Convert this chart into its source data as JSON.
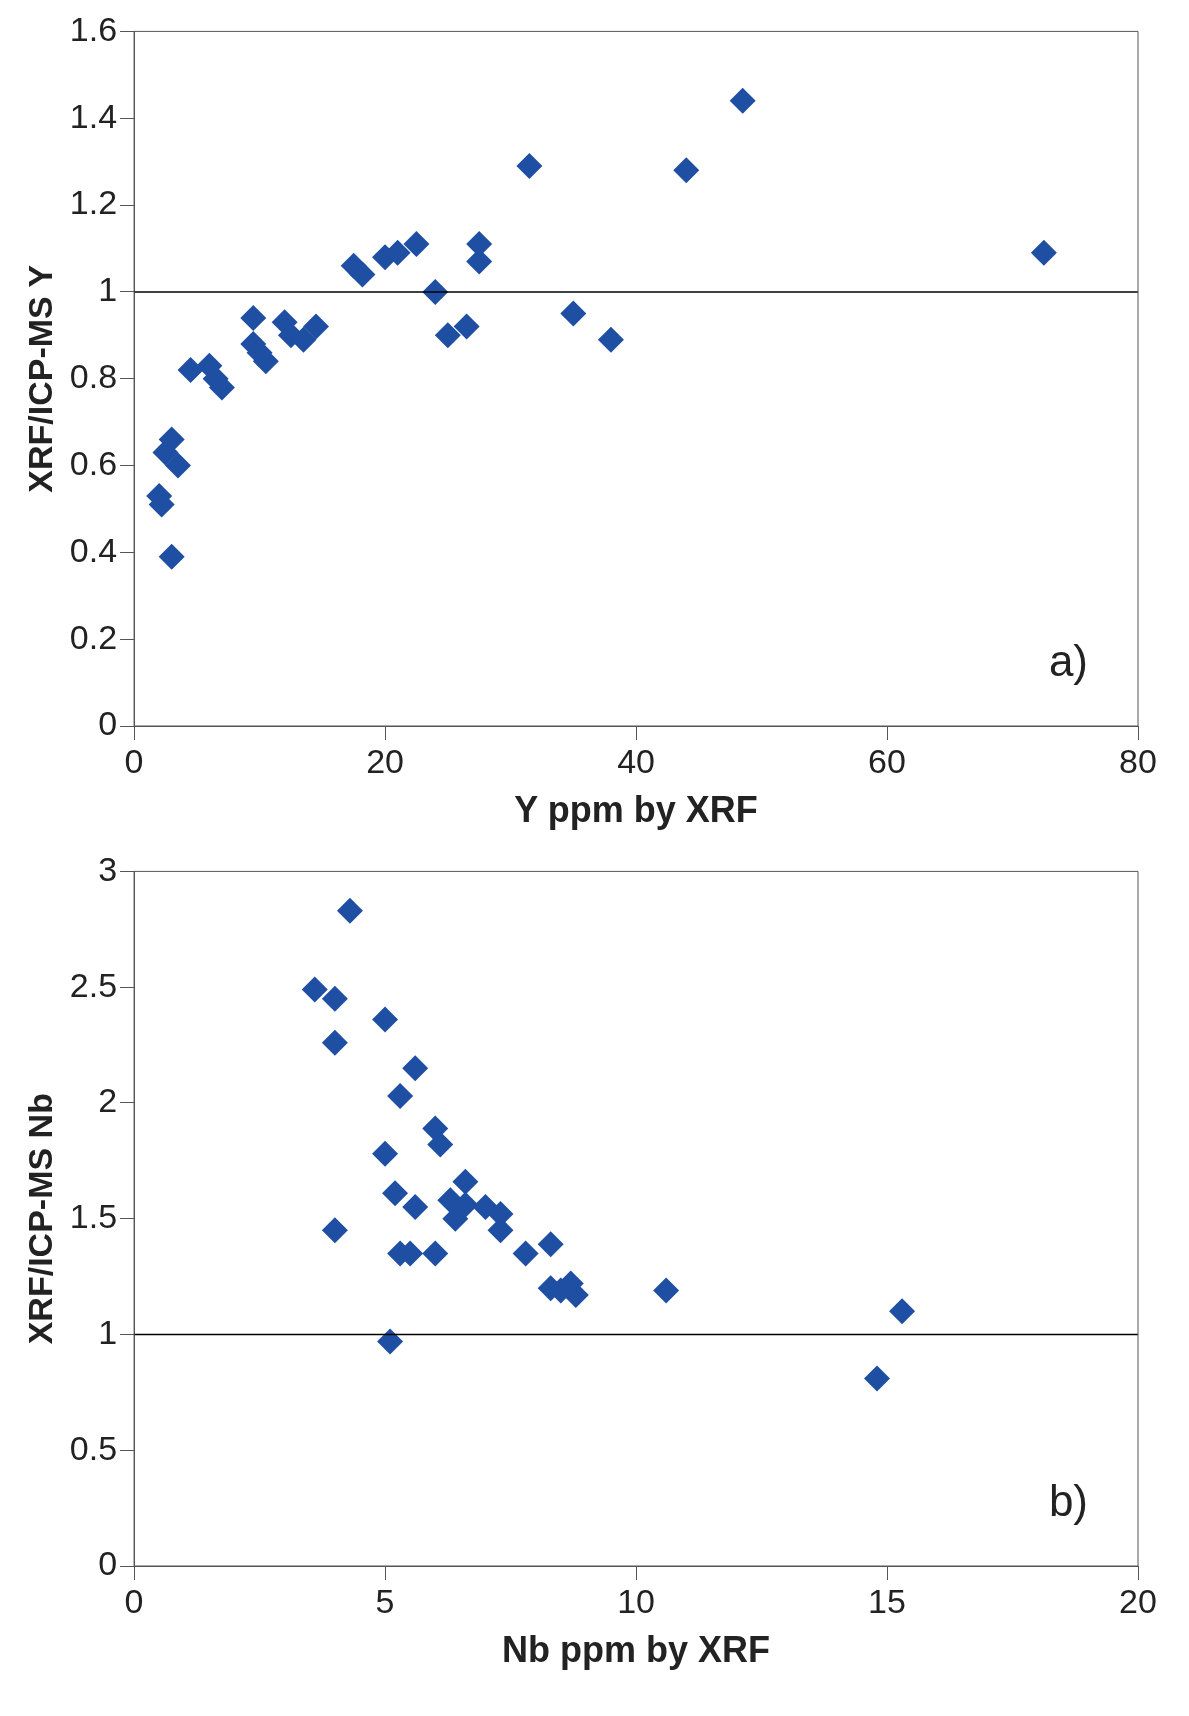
{
  "chart_data": [
    {
      "type": "scatter",
      "xlabel": "Y ppm by XRF",
      "ylabel": "XRF/ICP-MS Y",
      "xlim": [
        0,
        80
      ],
      "xticks": [
        0,
        20,
        40,
        60,
        80
      ],
      "ylim": [
        0,
        1.6
      ],
      "yticks": [
        0,
        0.2,
        0.4,
        0.6,
        0.8,
        1,
        1.2,
        1.4,
        1.6
      ],
      "grid": false,
      "legend": false,
      "marker": "diamond",
      "annotations": [
        "a)"
      ],
      "ref_lines": [
        {
          "axis": "y",
          "value": 1,
          "color": "#000000"
        }
      ],
      "series": [
        {
          "color": "#1f4fa3",
          "x": [
            2,
            2.2,
            2.5,
            3,
            3.5,
            3,
            4.5,
            6,
            6.5,
            7,
            9.5,
            9.5,
            10,
            10.5,
            12,
            12.5,
            13.5,
            14.5,
            17.5,
            18.2,
            20,
            21,
            22.5,
            24,
            25,
            26.5,
            27.5,
            27.5,
            31.5,
            35,
            38,
            44,
            48.5,
            72.5
          ],
          "values": [
            0.53,
            0.51,
            0.63,
            0.66,
            0.6,
            0.39,
            0.82,
            0.83,
            0.8,
            0.78,
            0.94,
            0.88,
            0.86,
            0.84,
            0.93,
            0.9,
            0.89,
            0.92,
            1.06,
            1.04,
            1.08,
            1.09,
            1.11,
            1,
            0.9,
            0.92,
            1.11,
            1.07,
            1.29,
            0.95,
            0.89,
            1.28,
            1.44,
            1.09
          ]
        }
      ]
    },
    {
      "type": "scatter",
      "xlabel": "Nb ppm by XRF",
      "ylabel": "XRF/ICP-MS Nb",
      "xlim": [
        0,
        20
      ],
      "xticks": [
        0,
        5,
        10,
        15,
        20
      ],
      "ylim": [
        0,
        3
      ],
      "yticks": [
        0,
        0.5,
        1,
        1.5,
        2,
        2.5,
        3
      ],
      "grid": false,
      "legend": false,
      "marker": "diamond",
      "annotations": [
        "b)"
      ],
      "ref_lines": [
        {
          "axis": "y",
          "value": 1,
          "color": "#000000"
        }
      ],
      "series": [
        {
          "color": "#1f4fa3",
          "x": [
            3.6,
            4,
            4,
            4.3,
            5,
            5.6,
            5.3,
            6,
            6.1,
            5,
            6.6,
            5.2,
            5.6,
            6.3,
            6.4,
            6.6,
            7,
            7.3,
            7.3,
            4,
            5.3,
            5.5,
            6,
            7.8,
            8.3,
            8.3,
            8.5,
            8.7,
            8.8,
            10.6,
            5.1,
            14.8,
            15.3
          ],
          "values": [
            2.49,
            2.45,
            2.26,
            2.83,
            2.36,
            2.15,
            2.03,
            1.89,
            1.82,
            1.78,
            1.66,
            1.61,
            1.55,
            1.58,
            1.5,
            1.56,
            1.55,
            1.52,
            1.45,
            1.45,
            1.35,
            1.35,
            1.35,
            1.35,
            1.39,
            1.2,
            1.19,
            1.22,
            1.17,
            1.19,
            0.97,
            0.81,
            1.1
          ]
        }
      ]
    }
  ]
}
